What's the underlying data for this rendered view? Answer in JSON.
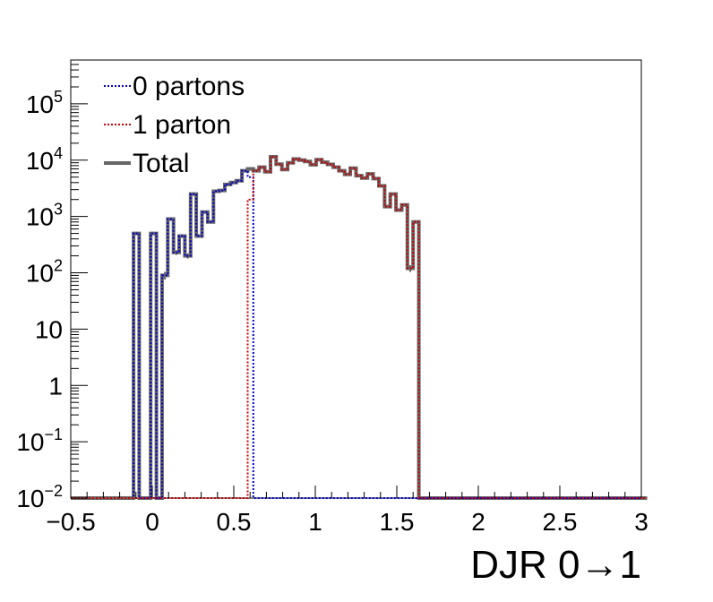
{
  "chart_data": {
    "type": "line",
    "title": "",
    "xlabel": "DJR 0→1",
    "ylabel": "",
    "x_range": [
      -0.5,
      3.0
    ],
    "y_range": [
      0.01,
      600000
    ],
    "log_y": true,
    "grid": false,
    "legend_position": "top-left",
    "x_ticks": [
      {
        "value": -0.5,
        "label": "−0.5"
      },
      {
        "value": 0,
        "label": "0"
      },
      {
        "value": 0.5,
        "label": "0.5"
      },
      {
        "value": 1,
        "label": "1"
      },
      {
        "value": 1.5,
        "label": "1.5"
      },
      {
        "value": 2,
        "label": "2"
      },
      {
        "value": 2.5,
        "label": "2.5"
      },
      {
        "value": 3,
        "label": "3"
      }
    ],
    "y_ticks": [
      {
        "value": 0.01,
        "base": "10",
        "exp": "−2"
      },
      {
        "value": 0.1,
        "base": "10",
        "exp": "−1"
      },
      {
        "value": 1,
        "base": "1",
        "exp": ""
      },
      {
        "value": 10,
        "base": "10",
        "exp": ""
      },
      {
        "value": 100,
        "base": "10",
        "exp": "2"
      },
      {
        "value": 1000,
        "base": "10",
        "exp": "3"
      },
      {
        "value": 10000,
        "base": "10",
        "exp": "4"
      },
      {
        "value": 100000,
        "base": "10",
        "exp": "5"
      }
    ],
    "bin_edges_start": -0.5,
    "bin_width": 0.035,
    "series": [
      {
        "name": "0 partons",
        "color": "#0000cc",
        "style": "dotted",
        "values": [
          0,
          0,
          0,
          0,
          0,
          0,
          0,
          0,
          0,
          0,
          0,
          500,
          0,
          0,
          500,
          0,
          90,
          900,
          230,
          450,
          200,
          2500,
          450,
          1200,
          800,
          2800,
          2900,
          3700,
          4000,
          4300,
          6500,
          5000,
          0,
          0,
          0,
          0,
          0,
          0,
          0,
          0,
          0,
          0,
          0,
          0,
          0,
          0,
          0,
          0,
          0,
          0,
          0,
          0,
          0,
          0,
          0,
          0,
          0,
          0,
          0,
          0,
          0,
          0,
          0,
          0,
          0,
          0,
          0,
          0,
          0,
          0,
          0,
          0,
          0,
          0,
          0,
          0,
          0,
          0,
          0,
          0,
          0,
          0,
          0,
          0,
          0,
          0,
          0,
          0,
          0,
          0,
          0,
          0,
          0,
          0,
          0,
          0,
          0,
          0,
          0,
          0
        ]
      },
      {
        "name": "1 parton",
        "color": "#cc0000",
        "style": "dotted",
        "values": [
          0,
          0,
          0,
          0,
          0,
          0,
          0,
          0,
          0,
          0,
          0,
          0,
          0,
          0,
          0,
          0,
          0,
          0,
          0,
          0,
          0,
          0,
          0,
          0,
          0,
          0,
          0,
          0,
          0,
          0,
          0,
          2000,
          6500,
          7500,
          6200,
          11500,
          8500,
          6800,
          9000,
          10500,
          10000,
          9500,
          8300,
          10200,
          9200,
          8400,
          7500,
          6500,
          5600,
          7200,
          5300,
          4800,
          5700,
          4700,
          3500,
          1500,
          2500,
          1300,
          1600,
          120,
          800,
          0,
          0,
          0,
          0,
          0,
          0,
          0,
          0,
          0,
          0,
          0,
          0,
          0,
          0,
          0,
          0,
          0,
          0,
          0,
          0,
          0,
          0,
          0,
          0,
          0,
          0,
          0,
          0,
          0,
          0,
          0,
          0,
          0,
          0,
          0,
          0,
          0,
          0,
          0,
          0
        ]
      },
      {
        "name": "Total",
        "color": "#666666",
        "style": "solid",
        "values": [
          0,
          0,
          0,
          0,
          0,
          0,
          0,
          0,
          0,
          0,
          0,
          500,
          0,
          0,
          500,
          0,
          90,
          900,
          230,
          450,
          200,
          2500,
          450,
          1200,
          800,
          2800,
          2900,
          3700,
          4000,
          4300,
          6500,
          7000,
          6500,
          7500,
          6200,
          11500,
          8500,
          6800,
          9000,
          10500,
          10000,
          9500,
          8300,
          10200,
          9200,
          8400,
          7500,
          6500,
          5600,
          7200,
          5300,
          4800,
          5700,
          4700,
          3500,
          1500,
          2500,
          1300,
          1600,
          120,
          800,
          0,
          0,
          0,
          0,
          0,
          0,
          0,
          0,
          0,
          0,
          0,
          0,
          0,
          0,
          0,
          0,
          0,
          0,
          0,
          0,
          0,
          0,
          0,
          0,
          0,
          0,
          0,
          0,
          0,
          0,
          0,
          0,
          0,
          0,
          0,
          0,
          0,
          0,
          0,
          0
        ]
      }
    ]
  }
}
